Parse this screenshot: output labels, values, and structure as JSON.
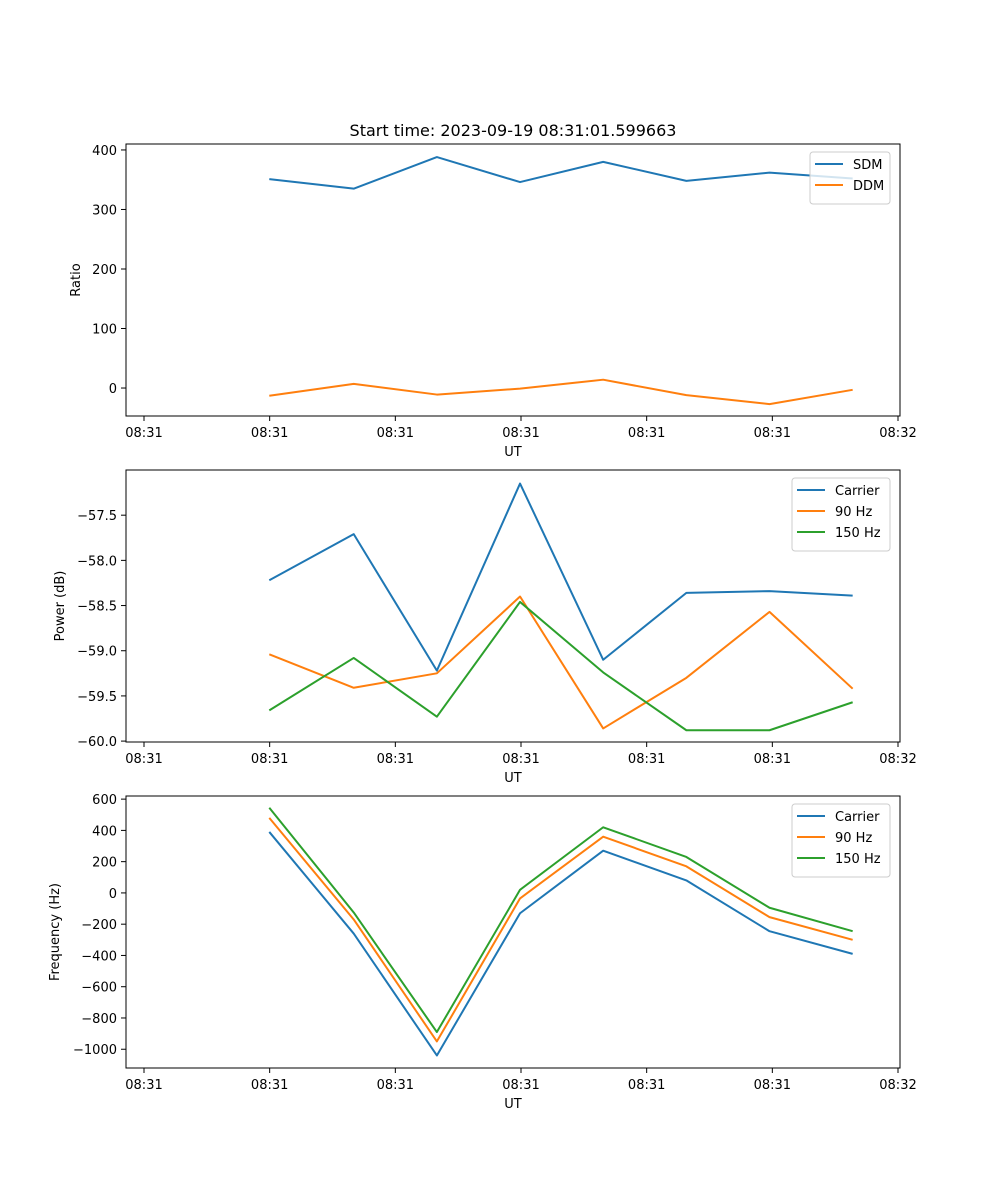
{
  "figure_title": "Start time: 2023-09-19 08:31:01.599663",
  "colors": {
    "blue": "#1f77b4",
    "orange": "#ff7f0e",
    "green": "#2ca02c",
    "frame": "#000000",
    "legend_border": "#cccccc"
  },
  "chart_data": [
    {
      "type": "line",
      "title": "Start time: 2023-09-19 08:31:01.599663",
      "xlabel": "UT",
      "ylabel": "Ratio",
      "x_ticks": [
        "08:31",
        "08:31",
        "08:31",
        "08:31",
        "08:31",
        "08:31",
        "08:32"
      ],
      "x": [
        0.52,
        1.18,
        1.83,
        2.48,
        3.13,
        3.78,
        4.43,
        5.08
      ],
      "xlim": [
        -0.6,
        5.45
      ],
      "ylim": [
        -47,
        410
      ],
      "y_ticks": [
        0,
        100,
        200,
        300,
        400
      ],
      "legend": "top-right",
      "grid": false,
      "series": [
        {
          "name": "SDM",
          "color": "#1f77b4",
          "values": [
            351,
            335,
            388,
            346,
            380,
            348,
            362,
            352
          ]
        },
        {
          "name": "DDM",
          "color": "#ff7f0e",
          "values": [
            -13,
            7,
            -11,
            -1,
            14,
            -12,
            -27,
            -3
          ]
        }
      ]
    },
    {
      "type": "line",
      "title": "",
      "xlabel": "UT",
      "ylabel": "Power (dB)",
      "x_ticks": [
        "08:31",
        "08:31",
        "08:31",
        "08:31",
        "08:31",
        "08:31",
        "08:32"
      ],
      "x": [
        0.52,
        1.18,
        1.83,
        2.48,
        3.13,
        3.78,
        4.43,
        5.08
      ],
      "xlim": [
        -0.6,
        5.45
      ],
      "ylim": [
        -60.01,
        -57.0
      ],
      "y_ticks": [
        -60.0,
        -59.5,
        -59.0,
        -58.5,
        -58.0,
        -57.5
      ],
      "y_tick_labels": [
        "−60.0",
        "−59.5",
        "−59.0",
        "−58.5",
        "−58.0",
        "−57.5"
      ],
      "legend": "top-right",
      "grid": false,
      "series": [
        {
          "name": "Carrier",
          "color": "#1f77b4",
          "values": [
            -58.22,
            -57.71,
            -59.22,
            -57.15,
            -59.1,
            -58.36,
            -58.34,
            -58.39
          ]
        },
        {
          "name": "90 Hz",
          "color": "#ff7f0e",
          "values": [
            -59.04,
            -59.41,
            -59.25,
            -58.4,
            -59.86,
            -59.3,
            -58.57,
            -59.42
          ]
        },
        {
          "name": "150 Hz",
          "color": "#2ca02c",
          "values": [
            -59.66,
            -59.08,
            -59.73,
            -58.46,
            -59.24,
            -59.88,
            -59.88,
            -59.57
          ]
        }
      ]
    },
    {
      "type": "line",
      "title": "",
      "xlabel": "UT",
      "ylabel": "Frequency (Hz)",
      "x_ticks": [
        "08:31",
        "08:31",
        "08:31",
        "08:31",
        "08:31",
        "08:31",
        "08:32"
      ],
      "x": [
        0.52,
        1.18,
        1.83,
        2.48,
        3.13,
        3.78,
        4.43,
        5.08
      ],
      "xlim": [
        -0.6,
        5.45
      ],
      "ylim": [
        -1120,
        620
      ],
      "y_ticks": [
        -1000,
        -800,
        -600,
        -400,
        -200,
        0,
        200,
        400,
        600
      ],
      "y_tick_labels": [
        "−1000",
        "−800",
        "−600",
        "−400",
        "−200",
        "0",
        "200",
        "400",
        "600"
      ],
      "legend": "top-right",
      "grid": false,
      "series": [
        {
          "name": "Carrier",
          "color": "#1f77b4",
          "values": [
            390,
            -260,
            -1040,
            -130,
            270,
            80,
            -245,
            -390
          ]
        },
        {
          "name": "90 Hz",
          "color": "#ff7f0e",
          "values": [
            480,
            -170,
            -950,
            -35,
            360,
            170,
            -155,
            -300
          ]
        },
        {
          "name": "150 Hz",
          "color": "#2ca02c",
          "values": [
            545,
            -125,
            -890,
            20,
            420,
            230,
            -95,
            -245
          ]
        }
      ]
    }
  ]
}
